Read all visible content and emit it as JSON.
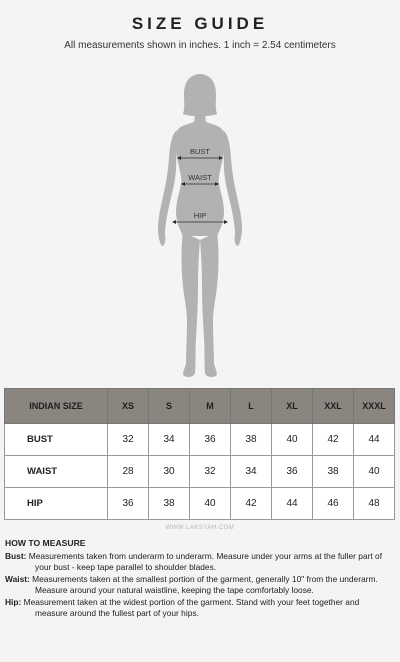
{
  "header": {
    "title": "SIZE GUIDE",
    "subtitle": "All measurements shown in inches. 1 inch = 2.54 centimeters"
  },
  "figure": {
    "labels": {
      "bust": "BUST",
      "waist": "WAIST",
      "hip": "HIP"
    },
    "body_color": "#b2b2b2",
    "arrow_color": "#2a2a2a"
  },
  "table": {
    "header_bg": "#8a867f",
    "columns": [
      "INDIAN SIZE",
      "XS",
      "S",
      "M",
      "L",
      "XL",
      "XXL",
      "XXXL"
    ],
    "rows": [
      {
        "label": "BUST",
        "values": [
          "32",
          "34",
          "36",
          "38",
          "40",
          "42",
          "44"
        ]
      },
      {
        "label": "WAIST",
        "values": [
          "28",
          "30",
          "32",
          "34",
          "36",
          "38",
          "40"
        ]
      },
      {
        "label": "HIP",
        "values": [
          "36",
          "38",
          "40",
          "42",
          "44",
          "46",
          "48"
        ]
      }
    ]
  },
  "watermark": "WWW.LAKSYAH.COM",
  "how_to_measure": {
    "title": "HOW TO MEASURE",
    "entries": [
      {
        "term": "Bust:",
        "line1": " Measurements taken from underarm to underarm. Measure under your arms at the fuller part of",
        "line2": "your bust - keep tape parallel to shoulder blades."
      },
      {
        "term": "Waist:",
        "line1": " Measurements taken at the smallest portion of the garment, generally 10\" from the underarm.",
        "line2": "Measure around your natural waistline, keeping the tape comfortably loose."
      },
      {
        "term": "Hip:",
        "line1": " Measurement taken at the widest portion of the garment. Stand with your feet together and",
        "line2": "measure around the fullest part of your hips."
      }
    ]
  }
}
